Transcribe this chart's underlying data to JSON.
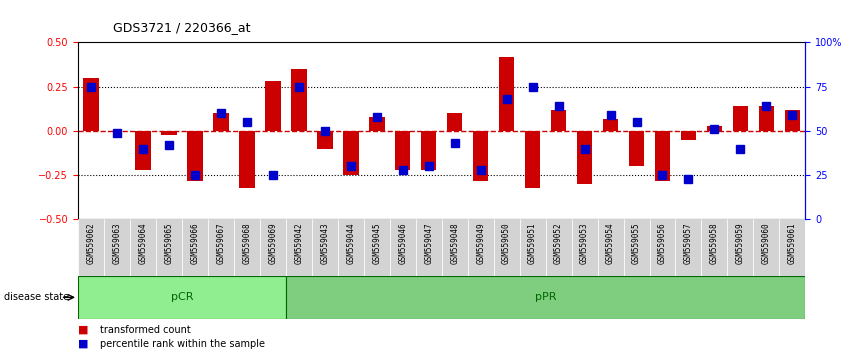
{
  "title": "GDS3721 / 220366_at",
  "samples": [
    "GSM559062",
    "GSM559063",
    "GSM559064",
    "GSM559065",
    "GSM559066",
    "GSM559067",
    "GSM559068",
    "GSM559069",
    "GSM559042",
    "GSM559043",
    "GSM559044",
    "GSM559045",
    "GSM559046",
    "GSM559047",
    "GSM559048",
    "GSM559049",
    "GSM559050",
    "GSM559051",
    "GSM559052",
    "GSM559053",
    "GSM559054",
    "GSM559055",
    "GSM559056",
    "GSM559057",
    "GSM559058",
    "GSM559059",
    "GSM559060",
    "GSM559061"
  ],
  "red_values": [
    0.3,
    0.0,
    -0.22,
    -0.02,
    -0.28,
    0.1,
    -0.32,
    0.28,
    0.35,
    -0.1,
    -0.25,
    0.08,
    -0.22,
    -0.22,
    0.1,
    -0.28,
    0.42,
    -0.32,
    0.12,
    -0.3,
    0.07,
    -0.2,
    -0.28,
    -0.05,
    0.03,
    0.14,
    0.14,
    0.12
  ],
  "blue_values": [
    0.25,
    -0.01,
    -0.1,
    -0.08,
    -0.25,
    0.1,
    0.05,
    -0.25,
    0.25,
    0.0,
    -0.2,
    0.08,
    -0.22,
    -0.2,
    -0.07,
    -0.22,
    0.18,
    0.25,
    0.14,
    -0.1,
    0.09,
    0.05,
    -0.25,
    -0.27,
    0.01,
    -0.1,
    0.14,
    0.09
  ],
  "group_labels": [
    "pCR",
    "pPR"
  ],
  "group_sizes": [
    8,
    20
  ],
  "group_colors": [
    "#90EE90",
    "#7FCD7F"
  ],
  "ylim": [
    -0.5,
    0.5
  ],
  "y_ticks_left": [
    -0.5,
    -0.25,
    0.0,
    0.25,
    0.5
  ],
  "y_ticks_right": [
    0,
    25,
    50,
    75,
    100
  ],
  "right_tick_labels": [
    "0",
    "25",
    "50",
    "75",
    "100%"
  ],
  "red_color": "#CC0000",
  "blue_color": "#0000CC",
  "zero_line_color": "#CC0000",
  "dotted_line_color": "#000000",
  "bg_color": "#FFFFFF",
  "bar_width": 0.6,
  "blue_size": 6
}
